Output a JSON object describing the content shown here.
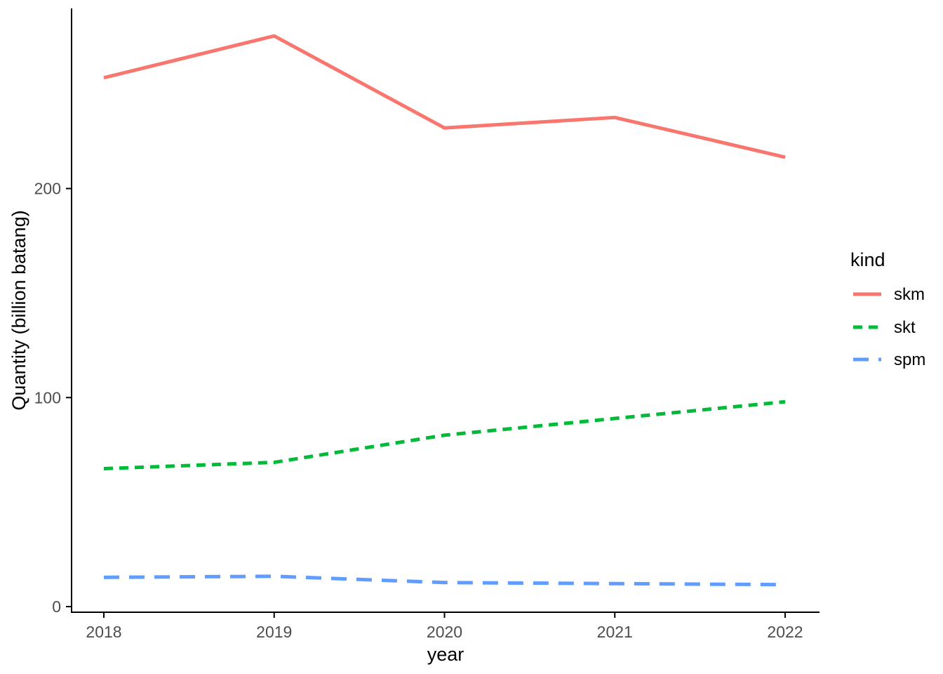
{
  "chart_data": {
    "type": "line",
    "title": "",
    "xlabel": "year",
    "ylabel": "Quantity (billion batang)",
    "legend_title": "kind",
    "legend_position": "right",
    "grid": false,
    "background": "#ffffff",
    "axis_color": "#000000",
    "tick_label_color": "#4d4d4d",
    "x": [
      2018,
      2019,
      2020,
      2021,
      2022
    ],
    "x_tick_labels": [
      "2018",
      "2019",
      "2020",
      "2021",
      "2022"
    ],
    "y_tick_labels": [
      "0",
      "100",
      "200"
    ],
    "y_tick_values": [
      0,
      100,
      200
    ],
    "ylim": [
      -3,
      286
    ],
    "series": [
      {
        "name": "skm",
        "color": "#F8766D",
        "linetype": "solid",
        "values": [
          253,
          273,
          229,
          234,
          215
        ]
      },
      {
        "name": "skt",
        "color": "#00BA38",
        "linetype": "short-dash",
        "values": [
          66,
          69,
          82,
          90,
          98
        ]
      },
      {
        "name": "spm",
        "color": "#619CFF",
        "linetype": "long-dash",
        "values": [
          14,
          14.5,
          11.5,
          11,
          10.5
        ]
      }
    ]
  }
}
